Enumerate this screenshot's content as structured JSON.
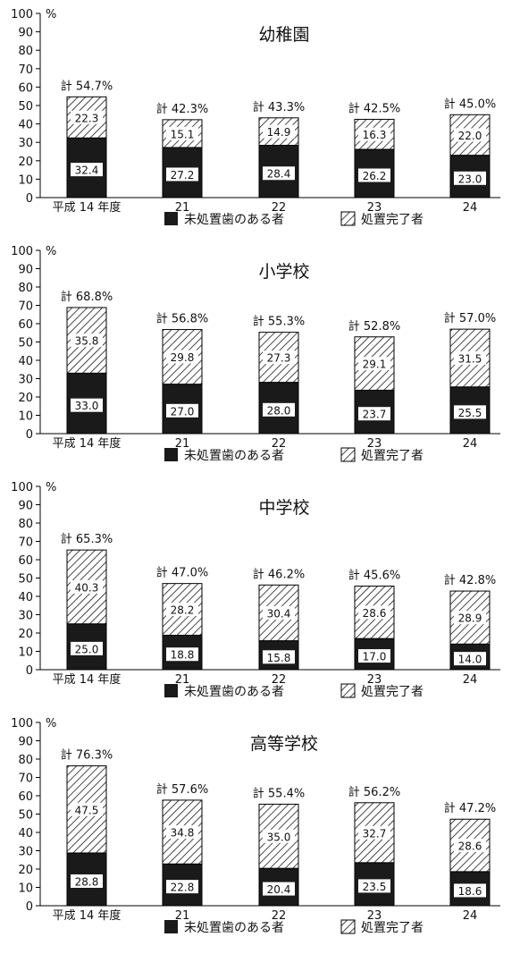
{
  "legend": {
    "untreated": "未処置歯のある者",
    "treated": "処置完了者"
  },
  "colors": {
    "untreated": "#1a1a1a",
    "treated_hatch": "#1a1a1a",
    "axis": "#000000"
  },
  "chart_data": [
    {
      "type": "bar",
      "stacked": true,
      "title": "幼稚園",
      "y_unit": "%",
      "ylim": [
        0,
        100
      ],
      "yticks": [
        0,
        10,
        20,
        30,
        40,
        50,
        60,
        70,
        80,
        90,
        100
      ],
      "categories": [
        "平成 14 年度",
        "21",
        "22",
        "23",
        "24"
      ],
      "series": [
        {
          "name": "未処置歯のある者",
          "values": [
            32.4,
            27.2,
            28.4,
            26.2,
            23.0
          ],
          "labels": [
            "32.4",
            "27.2",
            "28.4",
            "26.2",
            "23.0"
          ]
        },
        {
          "name": "処置完了者",
          "values": [
            22.3,
            15.1,
            14.9,
            16.3,
            22.0
          ],
          "labels": [
            "22.3",
            "15.1",
            "14.9",
            "16.3",
            "22.0"
          ]
        }
      ],
      "totals": [
        "計 54.7%",
        "計 42.3%",
        "計 43.3%",
        "計 42.5%",
        "計 45.0%"
      ]
    },
    {
      "type": "bar",
      "stacked": true,
      "title": "小学校",
      "y_unit": "%",
      "ylim": [
        0,
        100
      ],
      "yticks": [
        0,
        10,
        20,
        30,
        40,
        50,
        60,
        70,
        80,
        90,
        100
      ],
      "categories": [
        "平成 14 年度",
        "21",
        "22",
        "23",
        "24"
      ],
      "series": [
        {
          "name": "未処置歯のある者",
          "values": [
            33.0,
            27.0,
            28.0,
            23.7,
            25.5
          ],
          "labels": [
            "33.0",
            "27.0",
            "28.0",
            "23.7",
            "25.5"
          ]
        },
        {
          "name": "処置完了者",
          "values": [
            35.8,
            29.8,
            27.3,
            29.1,
            31.5
          ],
          "labels": [
            "35.8",
            "29.8",
            "27.3",
            "29.1",
            "31.5"
          ]
        }
      ],
      "totals": [
        "計 68.8%",
        "計 56.8%",
        "計 55.3%",
        "計 52.8%",
        "計 57.0%"
      ]
    },
    {
      "type": "bar",
      "stacked": true,
      "title": "中学校",
      "y_unit": "%",
      "ylim": [
        0,
        100
      ],
      "yticks": [
        0,
        10,
        20,
        30,
        40,
        50,
        60,
        70,
        80,
        90,
        100
      ],
      "categories": [
        "平成 14 年度",
        "21",
        "22",
        "23",
        "24"
      ],
      "series": [
        {
          "name": "未処置歯のある者",
          "values": [
            25.0,
            18.8,
            15.8,
            17.0,
            14.0
          ],
          "labels": [
            "25.0",
            "18.8",
            "15.8",
            "17.0",
            "14.0"
          ]
        },
        {
          "name": "処置完了者",
          "values": [
            40.3,
            28.2,
            30.4,
            28.6,
            28.9
          ],
          "labels": [
            "40.3",
            "28.2",
            "30.4",
            "28.6",
            "28.9"
          ]
        }
      ],
      "totals": [
        "計 65.3%",
        "計 47.0%",
        "計 46.2%",
        "計 45.6%",
        "計 42.8%"
      ]
    },
    {
      "type": "bar",
      "stacked": true,
      "title": "高等学校",
      "y_unit": "%",
      "ylim": [
        0,
        100
      ],
      "yticks": [
        0,
        10,
        20,
        30,
        40,
        50,
        60,
        70,
        80,
        90,
        100
      ],
      "categories": [
        "平成 14 年度",
        "21",
        "22",
        "23",
        "24"
      ],
      "series": [
        {
          "name": "未処置歯のある者",
          "values": [
            28.8,
            22.8,
            20.4,
            23.5,
            18.6
          ],
          "labels": [
            "28.8",
            "22.8",
            "20.4",
            "23.5",
            "18.6"
          ]
        },
        {
          "name": "処置完了者",
          "values": [
            47.5,
            34.8,
            35.0,
            32.7,
            28.6
          ],
          "labels": [
            "47.5",
            "34.8",
            "35.0",
            "32.7",
            "28.6"
          ]
        }
      ],
      "totals": [
        "計 76.3%",
        "計 57.6%",
        "計 55.4%",
        "計 56.2%",
        "計 47.2%"
      ]
    }
  ]
}
